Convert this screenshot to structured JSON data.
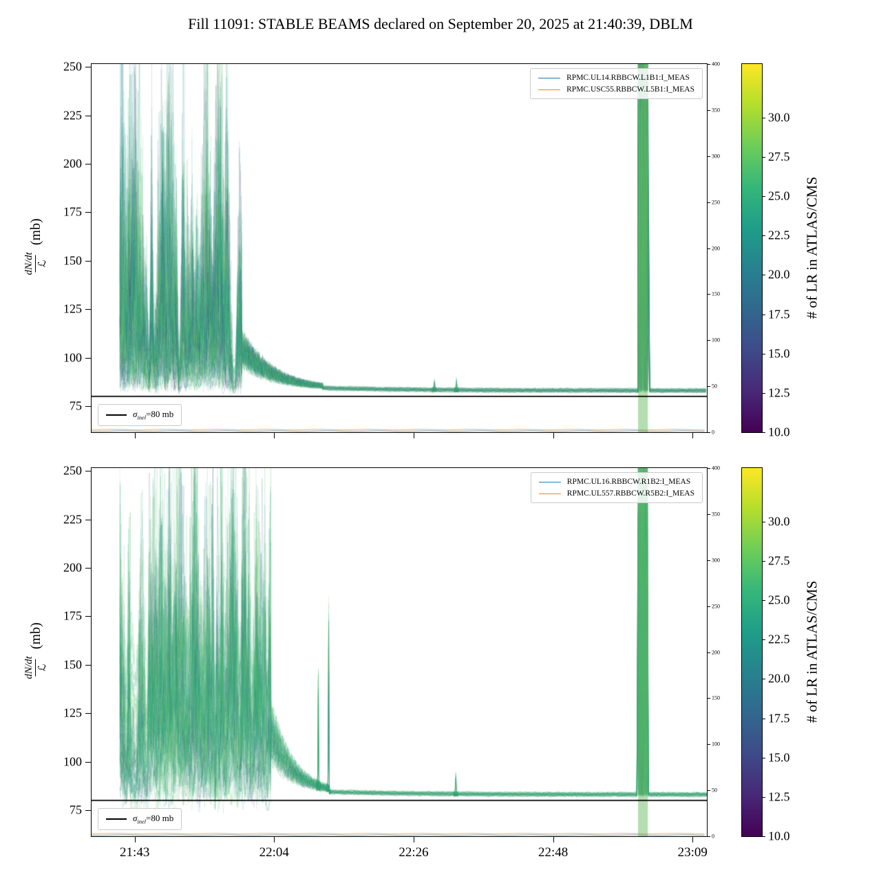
{
  "title": "Fill 11091: STABLE BEAMS declared on September 20, 2025 at 21:40:39, DBLM",
  "colorbar": {
    "label": "# of LR in ATLAS/CMS",
    "ticks": [
      "10.0",
      "12.5",
      "15.0",
      "17.5",
      "20.0",
      "22.5",
      "25.0",
      "27.5",
      "30.0"
    ],
    "tick_values": [
      10,
      12.5,
      15,
      17.5,
      20,
      22.5,
      25,
      27.5,
      30
    ],
    "vmin": 10,
    "vmax": 33.4,
    "colormap": "viridis"
  },
  "chart_data": [
    {
      "type": "line",
      "panel": "top",
      "legend": [
        "RPMC.UL14.RBBCW.L1B1:I_MEAS",
        "RPMC.USC55.RBBCW.L5B1:I_MEAS"
      ],
      "legend_colors": [
        "#1f77b4",
        "#ff7f0e"
      ],
      "sigma_label": {
        "symbol": "σ",
        "sub": "inel",
        "rest": "=80 mb"
      },
      "sigma_value_mb": 80,
      "ylabel": {
        "numerator": "dN/dt",
        "denominator": "ℒ",
        "unit": "(mb)"
      },
      "ylim": [
        61.5,
        251.5
      ],
      "yticks": [
        "75",
        "100",
        "125",
        "150",
        "175",
        "200",
        "225",
        "250"
      ],
      "ytick_values": [
        75,
        100,
        125,
        150,
        175,
        200,
        225,
        250
      ],
      "right_ylim": [
        0,
        400
      ],
      "right_yticks": [
        "0",
        "50",
        "100",
        "150",
        "200",
        "250",
        "300",
        "350",
        "400"
      ],
      "xlim_minutes": [
        36.35,
        131.2
      ],
      "xticks_minutes": [
        43,
        64.5,
        86,
        107.5,
        129
      ],
      "xtick_labels": [
        "21:43",
        "22:04",
        "22:26",
        "22:48",
        "23:09"
      ],
      "show_xtick_labels": false,
      "series_model": {
        "start_min": 40.7,
        "chaos_end_min": 59.5,
        "settle_end_min": 72,
        "baseline_mb": 82.7,
        "band_min": [
          120.6,
          122.1
        ],
        "spikes": [
          {
            "t": 89.2,
            "h": 5,
            "w": 0.1
          },
          {
            "t": 92.6,
            "h": 6,
            "w": 0.09
          }
        ],
        "n_lines": 88,
        "lr_range": [
          10,
          33.4
        ]
      },
      "baseline_lines": [
        {
          "color": "#1f77b4",
          "right_value": 1.2
        },
        {
          "color": "#ff7f0e",
          "right_value": 2.8
        }
      ]
    },
    {
      "type": "line",
      "panel": "bottom",
      "legend": [
        "RPMC.UL16.RBBCW.R1B2:I_MEAS",
        "RPMC.UL557.RBBCW.R5B2:I_MEAS"
      ],
      "legend_colors": [
        "#1f77b4",
        "#ff7f0e"
      ],
      "sigma_label": {
        "symbol": "σ",
        "sub": "inel",
        "rest": "=80 mb"
      },
      "sigma_value_mb": 80,
      "ylabel": {
        "numerator": "dN/dt",
        "denominator": "ℒ",
        "unit": "(mb)"
      },
      "ylim": [
        61.5,
        251.5
      ],
      "yticks": [
        "75",
        "100",
        "125",
        "150",
        "175",
        "200",
        "225",
        "250"
      ],
      "ytick_values": [
        75,
        100,
        125,
        150,
        175,
        200,
        225,
        250
      ],
      "right_ylim": [
        0,
        400
      ],
      "right_yticks": [
        "0",
        "50",
        "100",
        "150",
        "200",
        "250",
        "300",
        "350",
        "400"
      ],
      "xlim_minutes": [
        36.35,
        131.2
      ],
      "xticks_minutes": [
        43,
        64.5,
        86,
        107.5,
        129
      ],
      "xtick_labels": [
        "21:43",
        "22:04",
        "22:26",
        "22:48",
        "23:09"
      ],
      "show_xtick_labels": true,
      "series_model": {
        "start_min": 40.7,
        "chaos_end_min": 64,
        "settle_end_min": 73,
        "baseline_mb": 82.7,
        "band_min": [
          120.6,
          122.1
        ],
        "spikes": [
          {
            "t": 71.3,
            "h": 65,
            "w": 0.06
          },
          {
            "t": 72.9,
            "h": 105,
            "w": 0.06
          },
          {
            "t": 92.5,
            "h": 11,
            "w": 0.08
          }
        ],
        "n_lines": 88,
        "lr_range": [
          10,
          33.4
        ]
      },
      "baseline_lines": [
        {
          "color": "#1f77b4",
          "right_value": 1.2
        },
        {
          "color": "#ff7f0e",
          "right_value": 2.8
        }
      ]
    }
  ]
}
